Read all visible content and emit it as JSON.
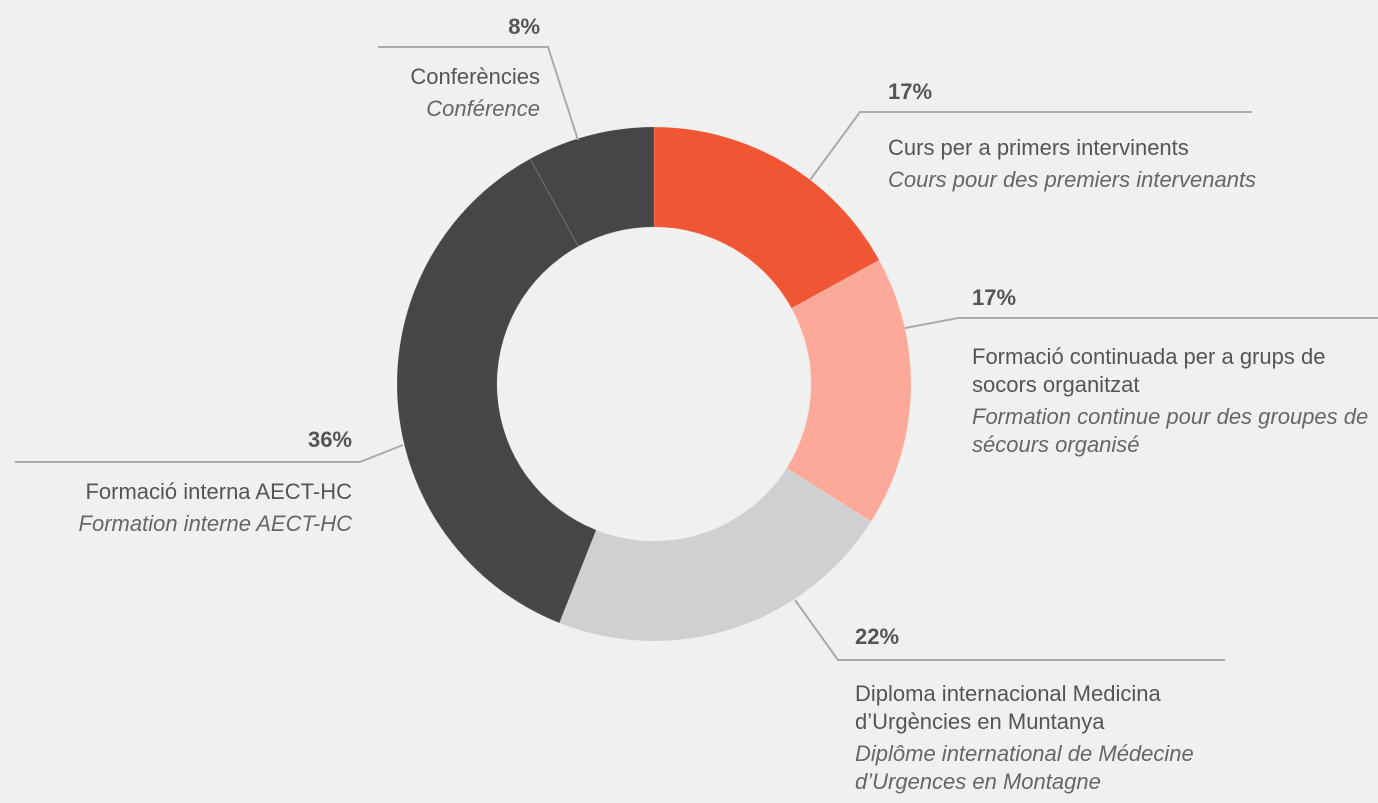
{
  "chart_data": {
    "type": "donut",
    "categories": [
      "Curs per a primers intervinents",
      "Formació continuada per a grups de socors organitzat",
      "Diploma internacional Medicina d’Urgències en Muntanya",
      "Formació interna AECT-HC",
      "Conferències"
    ],
    "subtitles": [
      "Cours pour des premiers intervenants",
      "Formation continue pour des groupes de sécours organisé",
      "Diplôme international de Médecine d’Urgences en Montagne",
      "Formation interne AECT-HC",
      "Conférence"
    ],
    "values": [
      17,
      17,
      22,
      36,
      8
    ],
    "value_labels": [
      "17%",
      "17%",
      "22%",
      "36%",
      "8%"
    ],
    "colors": [
      "#f15634",
      "#fca99a",
      "#d0d0d2",
      "#464648",
      "#464648"
    ]
  }
}
